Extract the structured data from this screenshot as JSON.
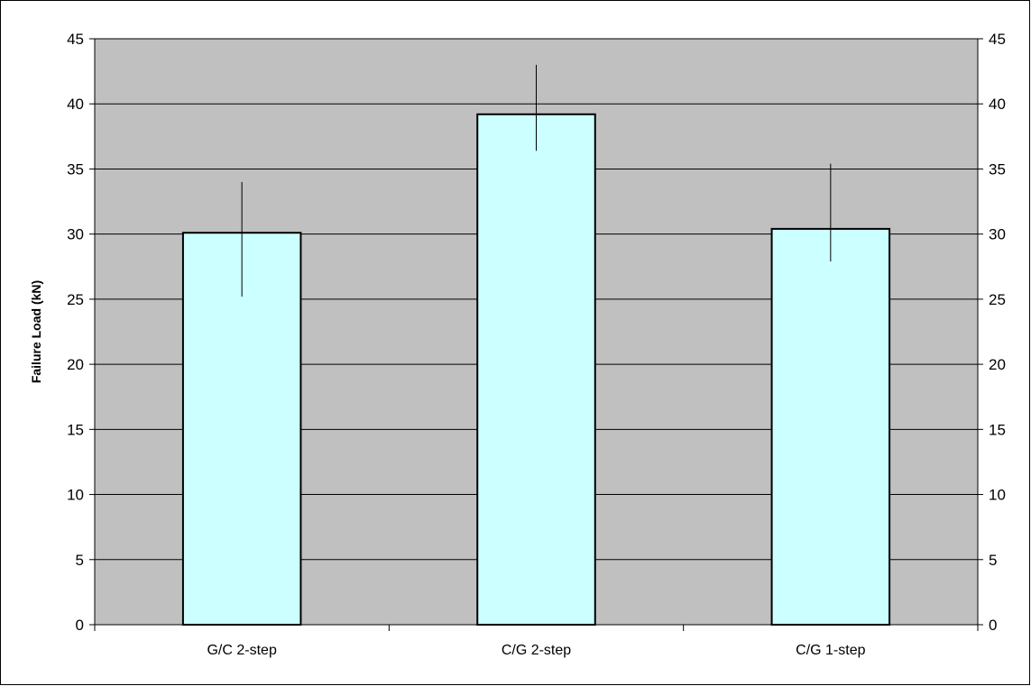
{
  "chart_data": {
    "type": "bar",
    "title": "",
    "xlabel": "",
    "ylabel": "Failure Load (kN)",
    "categories": [
      "G/C 2-step",
      "C/G 2-step",
      "C/G 1-step"
    ],
    "series": [
      {
        "values": [
          30.1,
          39.2,
          30.4
        ],
        "error_low": [
          25.2,
          36.4,
          27.9
        ],
        "error_high": [
          34.0,
          43.0,
          35.4
        ]
      }
    ],
    "ylim": [
      0,
      45
    ],
    "yticks": [
      0,
      5,
      10,
      15,
      20,
      25,
      30,
      35,
      40,
      45
    ],
    "secondary_y_axis": true,
    "grid": "horizontal",
    "legend": "none",
    "colors": {
      "plot_background": "#c0c0c0",
      "bar_fill": "#ccffff",
      "bar_stroke": "#000000",
      "gridline": "#000000",
      "border": "#000000"
    }
  }
}
